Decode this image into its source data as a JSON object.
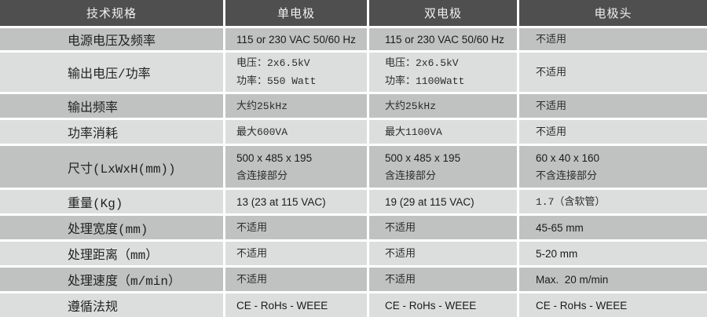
{
  "table": {
    "header": {
      "columns": [
        "技术规格",
        "单电极",
        "双电极",
        "电极头"
      ]
    },
    "rows": [
      {
        "label": "电源电压及频率",
        "cells": [
          "115 or 230 VAC 50/60 Hz",
          "115 or 230 VAC 50/60 Hz",
          "不适用"
        ]
      },
      {
        "label": "输出电压/功率",
        "cells": [
          "电压：2x6.5kV\n功率：550 Watt",
          "电压：2x6.5kV\n功率：1100Watt",
          "不适用"
        ]
      },
      {
        "label": "输出频率",
        "cells": [
          "大约25kHz",
          "大约25kHz",
          "不适用"
        ]
      },
      {
        "label": "功率消耗",
        "cells": [
          "最大600VA",
          "最大1100VA",
          "不适用"
        ]
      },
      {
        "label": "尺寸(LxWxH(mm))",
        "cells": [
          "500 x 485 x 195\n含连接部分",
          "500 x 485 x 195\n含连接部分",
          "60 x 40 x 160\n不含连接部分"
        ]
      },
      {
        "label": "重量(Kg)",
        "cells": [
          "13 (23 at 115 VAC)",
          "19 (29 at 115 VAC)",
          "1.7（含软管）"
        ]
      },
      {
        "label": "处理宽度(mm)",
        "cells": [
          "不适用",
          "不适用",
          "45-65 mm"
        ]
      },
      {
        "label": "处理距离（mm）",
        "cells": [
          "不适用",
          "不适用",
          "5-20 mm"
        ]
      },
      {
        "label": "处理速度（m/min）",
        "cells": [
          "不适用",
          "不适用",
          "Max.  20 m/min"
        ]
      },
      {
        "label": "遵循法规",
        "cells": [
          "CE - RoHs - WEEE",
          "CE - RoHs - WEEE",
          "CE - RoHs - WEEE"
        ]
      }
    ],
    "colors": {
      "header_bg": "#4f4f50",
      "header_text": "#efefef",
      "row_dark": "#c0c2c1",
      "row_light": "#dcdedd",
      "separator": "#ffffff",
      "cell_text": "#1e1e1e"
    }
  }
}
